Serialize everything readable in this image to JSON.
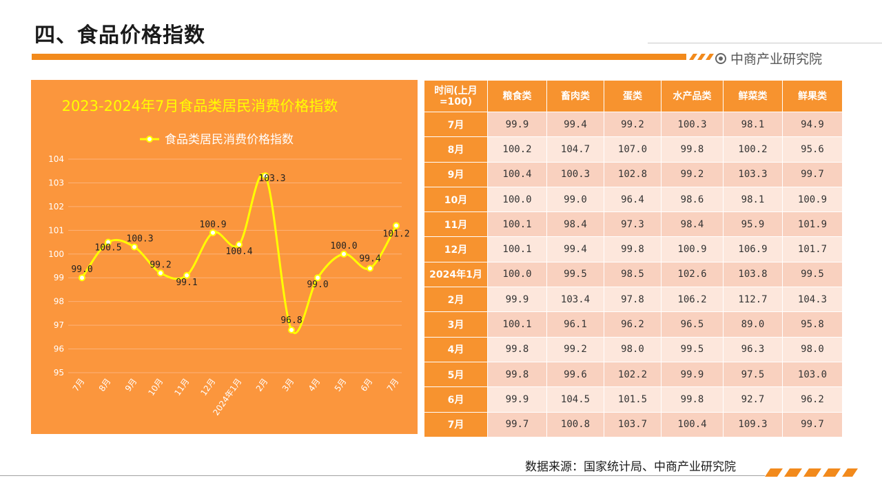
{
  "header": {
    "title": "四、食品价格指数",
    "brand": "中商产业研究院",
    "brand_icon": "target-circle-icon",
    "accent_color": "#f28a1c"
  },
  "chart_data": {
    "type": "line",
    "title": "2023-2024年7月食品类居民消费价格指数",
    "legend_position": "top",
    "categories": [
      "7月",
      "8月",
      "9月",
      "10月",
      "11月",
      "12月",
      "2024年1月",
      "2月",
      "3月",
      "4月",
      "5月",
      "6月",
      "7月"
    ],
    "series": [
      {
        "name": "食品类居民消费价格指数",
        "values": [
          99.0,
          100.5,
          100.3,
          99.2,
          99.1,
          100.9,
          100.4,
          103.3,
          96.8,
          99.0,
          100.0,
          99.4,
          101.2
        ],
        "color": "#ffff00"
      }
    ],
    "y_ticks": [
      95,
      96,
      97,
      98,
      99,
      100,
      101,
      102,
      103,
      104
    ],
    "ylim": [
      95,
      104
    ],
    "grid": true,
    "background_color": "#fb963d",
    "title_color": "#ffff00"
  },
  "table": {
    "headers": [
      "时间(上月=100)",
      "粮食类",
      "畜肉类",
      "蛋类",
      "水产品类",
      "鲜菜类",
      "鲜果类"
    ],
    "rows": [
      [
        "7月",
        "99.9",
        "99.4",
        "99.2",
        "100.3",
        "98.1",
        "94.9"
      ],
      [
        "8月",
        "100.2",
        "104.7",
        "107.0",
        "99.8",
        "100.2",
        "95.6"
      ],
      [
        "9月",
        "100.4",
        "100.3",
        "102.8",
        "99.2",
        "103.3",
        "99.7"
      ],
      [
        "10月",
        "100.0",
        "99.0",
        "96.4",
        "98.6",
        "98.1",
        "100.9"
      ],
      [
        "11月",
        "100.1",
        "98.4",
        "97.3",
        "98.4",
        "95.9",
        "101.9"
      ],
      [
        "12月",
        "100.1",
        "99.4",
        "99.8",
        "100.9",
        "106.9",
        "101.7"
      ],
      [
        "2024年1月",
        "100.0",
        "99.5",
        "98.5",
        "102.6",
        "103.8",
        "99.5"
      ],
      [
        "2月",
        "99.9",
        "103.4",
        "97.8",
        "106.2",
        "112.7",
        "104.3"
      ],
      [
        "3月",
        "100.1",
        "96.1",
        "96.2",
        "96.5",
        "89.0",
        "95.8"
      ],
      [
        "4月",
        "99.8",
        "99.2",
        "98.0",
        "99.5",
        "96.3",
        "98.0"
      ],
      [
        "5月",
        "99.8",
        "99.6",
        "102.2",
        "99.9",
        "97.5",
        "103.0"
      ],
      [
        "6月",
        "99.9",
        "104.5",
        "101.5",
        "99.8",
        "92.7",
        "96.2"
      ],
      [
        "7月",
        "99.7",
        "100.8",
        "103.7",
        "100.4",
        "109.3",
        "99.7"
      ]
    ]
  },
  "footer": {
    "source": "数据来源：国家统计局、中商产业研究院"
  }
}
